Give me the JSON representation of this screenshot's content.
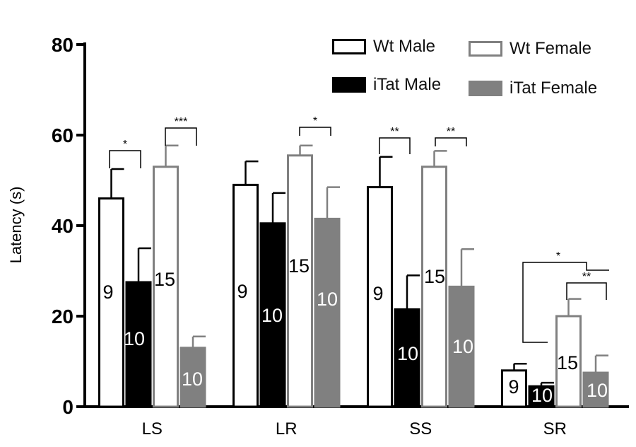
{
  "chart_data": {
    "type": "bar",
    "ylabel": "Latency (s)",
    "ylim": [
      0,
      80
    ],
    "yticks": [
      0,
      20,
      40,
      60,
      80
    ],
    "categories": [
      "LS",
      "LR",
      "SS",
      "SR"
    ],
    "series": [
      {
        "name": "Wt Male",
        "fill": "#ffffff",
        "stroke": "#000000",
        "values": [
          46,
          49,
          48.5,
          8
        ],
        "errors": [
          6.5,
          5.2,
          6.7,
          1.5
        ],
        "n": [
          "9",
          "9",
          "9",
          "9"
        ],
        "n_color": "#000000"
      },
      {
        "name": "iTat Male",
        "fill": "#000000",
        "stroke": "#000000",
        "values": [
          27.5,
          40.5,
          21.5,
          4.5
        ],
        "errors": [
          7.5,
          6.7,
          7.5,
          0.8
        ],
        "n": [
          "10",
          "10",
          "10",
          "10"
        ],
        "n_color": "#ffffff"
      },
      {
        "name": "Wt Female",
        "fill": "#ffffff",
        "stroke": "#808080",
        "values": [
          53,
          55.5,
          53,
          20
        ],
        "errors": [
          4.7,
          2.2,
          3.5,
          3.8
        ],
        "n": [
          "15",
          "15",
          "15",
          "15"
        ],
        "n_color": "#000000"
      },
      {
        "name": "iTat Female",
        "fill": "#808080",
        "stroke": "#808080",
        "values": [
          13,
          41.5,
          26.5,
          7.5
        ],
        "errors": [
          2.5,
          7,
          8.3,
          3.8
        ],
        "n": [
          "10",
          "10",
          "10",
          "10"
        ],
        "n_color": "#ffffff"
      }
    ],
    "significance": [
      {
        "category": "LS",
        "from": 0,
        "to": 1,
        "label": "*"
      },
      {
        "category": "LS",
        "from": 2,
        "to": 3,
        "label": "***"
      },
      {
        "category": "LR",
        "from": 2,
        "to": 3,
        "label": "*"
      },
      {
        "category": "SS",
        "from": 0,
        "to": 1,
        "label": "**"
      },
      {
        "category": "SS",
        "from": 2,
        "to": 3,
        "label": "**"
      },
      {
        "category": "SR",
        "from": "Wt Male",
        "to": "Females",
        "label": "*"
      },
      {
        "category": "SR",
        "from": 2,
        "to": 3,
        "label": "**"
      }
    ],
    "legend_position": "top-right"
  },
  "legend": {
    "wt_male": "Wt Male",
    "wt_female": "Wt Female",
    "itat_male": "iTat Male",
    "itat_female": "iTat Female"
  }
}
